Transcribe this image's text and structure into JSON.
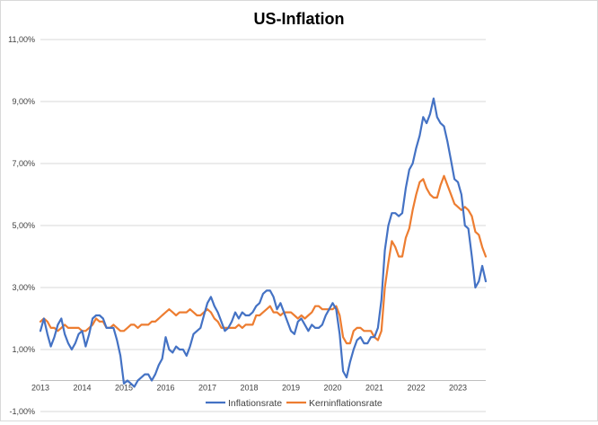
{
  "chart_data": {
    "type": "line",
    "title": "US-Inflation",
    "xlabel": "",
    "ylabel": "",
    "grid": true,
    "legend_position": "bottom",
    "x_start": "2013-01",
    "x_end": "2023-09",
    "x_tick_labels": [
      "2013",
      "2014",
      "2015",
      "2016",
      "2017",
      "2018",
      "2019",
      "2020",
      "2021",
      "2022",
      "2023"
    ],
    "ylim": [
      -1,
      11
    ],
    "y_ticks": [
      -1,
      1,
      3,
      5,
      7,
      9,
      11
    ],
    "y_tick_labels": [
      "-1,00%",
      "1,00%",
      "3,00%",
      "5,00%",
      "7,00%",
      "9,00%",
      "11,00%"
    ],
    "series": [
      {
        "name": "Inflationsrate",
        "color": "#4472c4",
        "values": [
          1.6,
          2.0,
          1.5,
          1.1,
          1.4,
          1.8,
          2.0,
          1.5,
          1.2,
          1.0,
          1.2,
          1.5,
          1.6,
          1.1,
          1.5,
          2.0,
          2.1,
          2.1,
          2.0,
          1.7,
          1.7,
          1.7,
          1.3,
          0.8,
          -0.1,
          0.0,
          -0.1,
          -0.2,
          0.0,
          0.1,
          0.2,
          0.2,
          0.0,
          0.2,
          0.5,
          0.7,
          1.4,
          1.0,
          0.9,
          1.1,
          1.0,
          1.0,
          0.8,
          1.1,
          1.5,
          1.6,
          1.7,
          2.1,
          2.5,
          2.7,
          2.4,
          2.2,
          1.9,
          1.6,
          1.7,
          1.9,
          2.2,
          2.0,
          2.2,
          2.1,
          2.1,
          2.2,
          2.4,
          2.5,
          2.8,
          2.9,
          2.9,
          2.7,
          2.3,
          2.5,
          2.2,
          1.9,
          1.6,
          1.5,
          1.9,
          2.0,
          1.8,
          1.6,
          1.8,
          1.7,
          1.7,
          1.8,
          2.1,
          2.3,
          2.5,
          2.3,
          1.5,
          0.3,
          0.1,
          0.6,
          1.0,
          1.3,
          1.4,
          1.2,
          1.2,
          1.4,
          1.4,
          1.7,
          2.6,
          4.2,
          5.0,
          5.4,
          5.4,
          5.3,
          5.4,
          6.2,
          6.8,
          7.0,
          7.5,
          7.9,
          8.5,
          8.3,
          8.6,
          9.1,
          8.5,
          8.3,
          8.2,
          7.7,
          7.1,
          6.5,
          6.4,
          6.0,
          5.0,
          4.9,
          4.0,
          3.0,
          3.2,
          3.7,
          3.2
        ]
      },
      {
        "name": "Kerninflationsrate",
        "color": "#ed7d31",
        "values": [
          1.9,
          2.0,
          1.9,
          1.7,
          1.7,
          1.6,
          1.7,
          1.8,
          1.7,
          1.7,
          1.7,
          1.7,
          1.6,
          1.6,
          1.7,
          1.8,
          2.0,
          1.9,
          1.9,
          1.7,
          1.7,
          1.8,
          1.7,
          1.6,
          1.6,
          1.7,
          1.8,
          1.8,
          1.7,
          1.8,
          1.8,
          1.8,
          1.9,
          1.9,
          2.0,
          2.1,
          2.2,
          2.3,
          2.2,
          2.1,
          2.2,
          2.2,
          2.2,
          2.3,
          2.2,
          2.1,
          2.1,
          2.2,
          2.3,
          2.2,
          2.0,
          1.9,
          1.7,
          1.7,
          1.7,
          1.7,
          1.7,
          1.8,
          1.7,
          1.8,
          1.8,
          1.8,
          2.1,
          2.1,
          2.2,
          2.3,
          2.4,
          2.2,
          2.2,
          2.1,
          2.2,
          2.2,
          2.2,
          2.1,
          2.0,
          2.1,
          2.0,
          2.1,
          2.2,
          2.4,
          2.4,
          2.3,
          2.3,
          2.3,
          2.3,
          2.4,
          2.1,
          1.4,
          1.2,
          1.2,
          1.6,
          1.7,
          1.7,
          1.6,
          1.6,
          1.6,
          1.4,
          1.3,
          1.6,
          3.0,
          3.8,
          4.5,
          4.3,
          4.0,
          4.0,
          4.6,
          4.9,
          5.5,
          6.0,
          6.4,
          6.5,
          6.2,
          6.0,
          5.9,
          5.9,
          6.3,
          6.6,
          6.3,
          6.0,
          5.7,
          5.6,
          5.5,
          5.6,
          5.5,
          5.3,
          4.8,
          4.7,
          4.3,
          4.0
        ]
      }
    ]
  }
}
